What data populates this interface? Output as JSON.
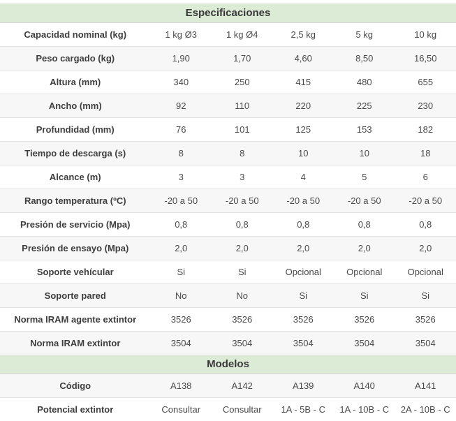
{
  "colors": {
    "header_bg": "#dcebd5",
    "row_alt_bg": "#f7f7f7",
    "row_bg": "#ffffff",
    "border": "#e2e2e2",
    "label_text": "#3e3e3e",
    "value_text": "#4a4a4a"
  },
  "chart_data": {
    "type": "table",
    "title": "Especificaciones",
    "sections": [
      {
        "title": "Especificaciones",
        "rows": [
          {
            "label": "Capacidad nominal (kg)",
            "values": [
              "1 kg Ø3",
              "1 kg Ø4",
              "2,5 kg",
              "5 kg",
              "10 kg"
            ]
          },
          {
            "label": "Peso cargado (kg)",
            "values": [
              "1,90",
              "1,70",
              "4,60",
              "8,50",
              "16,50"
            ]
          },
          {
            "label": "Altura (mm)",
            "values": [
              "340",
              "250",
              "415",
              "480",
              "655"
            ]
          },
          {
            "label": "Ancho (mm)",
            "values": [
              "92",
              "110",
              "220",
              "225",
              "230"
            ]
          },
          {
            "label": "Profundidad (mm)",
            "values": [
              "76",
              "101",
              "125",
              "153",
              "182"
            ]
          },
          {
            "label": "Tiempo de descarga (s)",
            "values": [
              "8",
              "8",
              "10",
              "10",
              "18"
            ]
          },
          {
            "label": "Alcance (m)",
            "values": [
              "3",
              "3",
              "4",
              "5",
              "6"
            ]
          },
          {
            "label": "Rango temperatura (ºC)",
            "values": [
              "-20 a 50",
              "-20 a 50",
              "-20 a 50",
              "-20 a 50",
              "-20 a 50"
            ]
          },
          {
            "label": "Presión de servicio (Mpa)",
            "values": [
              "0,8",
              "0,8",
              "0,8",
              "0,8",
              "0,8"
            ]
          },
          {
            "label": "Presión de ensayo (Mpa)",
            "values": [
              "2,0",
              "2,0",
              "2,0",
              "2,0",
              "2,0"
            ]
          },
          {
            "label": "Soporte vehícular",
            "values": [
              "Si",
              "Si",
              "Opcional",
              "Opcional",
              "Opcional"
            ]
          },
          {
            "label": "Soporte pared",
            "values": [
              "No",
              "No",
              "Si",
              "Si",
              "Si"
            ]
          },
          {
            "label": "Norma IRAM agente extintor",
            "values": [
              "3526",
              "3526",
              "3526",
              "3526",
              "3526"
            ]
          },
          {
            "label": "Norma IRAM extintor",
            "values": [
              "3504",
              "3504",
              "3504",
              "3504",
              "3504"
            ]
          }
        ]
      },
      {
        "title": "Modelos",
        "rows": [
          {
            "label": "Código",
            "values": [
              "A138",
              "A142",
              "A139",
              "A140",
              "A141"
            ]
          },
          {
            "label": "Potencial extintor",
            "values": [
              "Consultar",
              "Consultar",
              "1A - 5B - C",
              "1A - 10B - C",
              "2A - 10B - C"
            ]
          }
        ]
      }
    ]
  }
}
